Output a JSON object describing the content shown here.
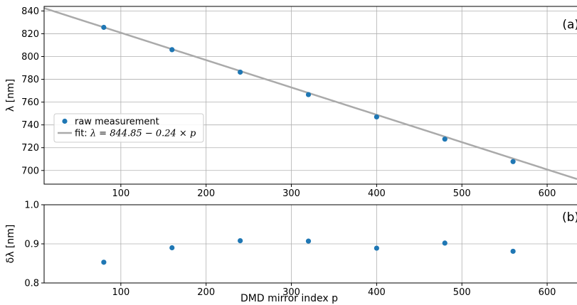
{
  "chart_data": [
    {
      "type": "scatter",
      "panel_label": "(a)",
      "xlabel": "",
      "ylabel": "λ [nm]",
      "xlim": [
        10,
        635
      ],
      "ylim": [
        688,
        844
      ],
      "xticks": [
        100,
        200,
        300,
        400,
        500,
        600
      ],
      "yticks": [
        700,
        720,
        740,
        760,
        780,
        800,
        820,
        840
      ],
      "grid": true,
      "legend": {
        "placement": "center-left",
        "entries": [
          {
            "label": "raw measurement",
            "kind": "marker",
            "color": "#1f77b4"
          },
          {
            "label_prefix": "fit: ",
            "label_math": "λ = 844.85 − 0.24 × p",
            "kind": "line",
            "color": "#aaaaaa"
          }
        ]
      },
      "series": [
        {
          "name": "raw measurement",
          "x": [
            80,
            160,
            240,
            320,
            400,
            480,
            560
          ],
          "y": [
            825.6,
            806.0,
            786.3,
            766.6,
            747.0,
            727.5,
            707.8
          ],
          "color": "#1f77b4"
        }
      ],
      "fit": {
        "intercept": 844.85,
        "slope": -0.24,
        "color": "#aaaaaa"
      }
    },
    {
      "type": "scatter",
      "panel_label": "(b)",
      "xlabel": "DMD mirror index p",
      "ylabel": "δλ [nm]",
      "xlim": [
        10,
        635
      ],
      "ylim": [
        0.8,
        1.0
      ],
      "xticks": [
        100,
        200,
        300,
        400,
        500,
        600
      ],
      "yticks": [
        0.8,
        0.9,
        1.0
      ],
      "ytick_labels": [
        "0.8",
        "0.9",
        "1.0"
      ],
      "grid": true,
      "series": [
        {
          "name": "",
          "x": [
            80,
            160,
            240,
            320,
            400,
            480,
            560
          ],
          "y": [
            0.853,
            0.89,
            0.908,
            0.907,
            0.889,
            0.902,
            0.881
          ],
          "color": "#1f77b4"
        }
      ]
    }
  ]
}
